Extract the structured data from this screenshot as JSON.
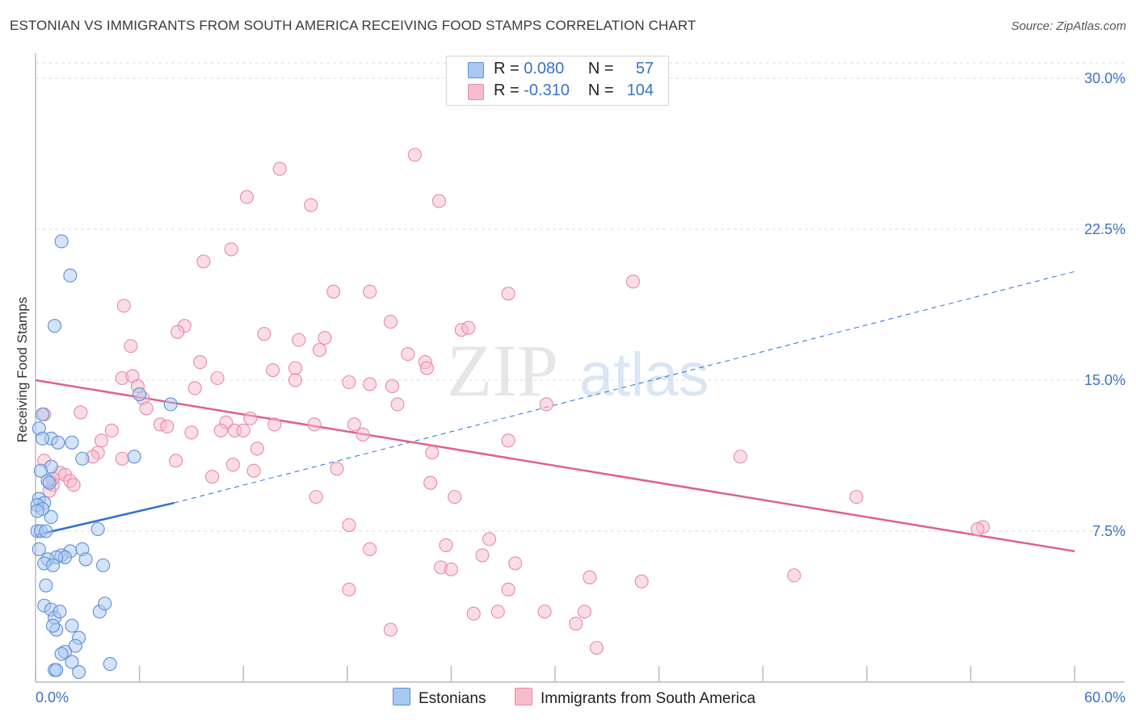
{
  "title": "ESTONIAN VS IMMIGRANTS FROM SOUTH AMERICA RECEIVING FOOD STAMPS CORRELATION CHART",
  "source": "Source: ZipAtlas.com",
  "watermark": {
    "zip": "ZIP",
    "atlas": "atlas"
  },
  "legend_top": [
    {
      "r_label": "R =",
      "r_value": "0.080",
      "n_label": "N =",
      "n_value": "57"
    },
    {
      "r_label": "R =",
      "r_value": "-0.310",
      "n_label": "N =",
      "n_value": "104"
    }
  ],
  "legend_bottom": [
    "Estonians",
    "Immigrants from South America"
  ],
  "colors": {
    "blue_fill": "#aac8ef",
    "blue_stroke": "#5d8fd6",
    "blue_line": "#3070d0",
    "pink_fill": "#f6bccd",
    "pink_stroke": "#e98aa6",
    "pink_line": "#e0608c",
    "tick_label": "#3a73c8",
    "grid": "#dddddd"
  },
  "chart_data": {
    "type": "scatter",
    "title": "ESTONIAN VS IMMIGRANTS FROM SOUTH AMERICA RECEIVING FOOD STAMPS CORRELATION CHART",
    "xlabel": "",
    "ylabel": "Receiving Food Stamps",
    "xlim": [
      0,
      60
    ],
    "ylim": [
      0,
      30
    ],
    "x_tick_labels": [
      "0.0%",
      "60.0%"
    ],
    "y_ticks": [
      7.5,
      15.0,
      22.5,
      30.0
    ],
    "y_tick_labels": [
      "7.5%",
      "15.0%",
      "22.5%",
      "30.0%"
    ],
    "grid": "horizontal dashed",
    "legend_position": "top-center",
    "series": [
      {
        "name": "Estonians",
        "r": 0.08,
        "n": 57,
        "trend": {
          "x0": 0,
          "y0": 7.3,
          "x1": 8,
          "y1": 8.9,
          "dashed_to_x": 60,
          "dashed_to_y": 20.4
        },
        "points": [
          [
            1.5,
            21.9
          ],
          [
            2.0,
            20.2
          ],
          [
            1.1,
            17.7
          ],
          [
            6.0,
            14.3
          ],
          [
            7.8,
            13.8
          ],
          [
            0.4,
            13.3
          ],
          [
            0.2,
            12.6
          ],
          [
            0.9,
            12.1
          ],
          [
            0.4,
            12.1
          ],
          [
            2.1,
            11.9
          ],
          [
            1.3,
            11.9
          ],
          [
            5.7,
            11.2
          ],
          [
            2.7,
            11.1
          ],
          [
            0.9,
            10.7
          ],
          [
            0.3,
            10.5
          ],
          [
            0.7,
            10.0
          ],
          [
            0.8,
            9.9
          ],
          [
            0.2,
            9.1
          ],
          [
            0.5,
            8.9
          ],
          [
            0.1,
            8.8
          ],
          [
            0.4,
            8.6
          ],
          [
            0.1,
            8.5
          ],
          [
            0.9,
            8.2
          ],
          [
            3.6,
            7.6
          ],
          [
            0.1,
            7.5
          ],
          [
            0.3,
            7.5
          ],
          [
            0.6,
            7.5
          ],
          [
            2.7,
            6.6
          ],
          [
            2.0,
            6.5
          ],
          [
            1.5,
            6.3
          ],
          [
            1.7,
            6.2
          ],
          [
            0.2,
            6.6
          ],
          [
            1.2,
            6.2
          ],
          [
            0.7,
            6.1
          ],
          [
            2.9,
            6.1
          ],
          [
            0.5,
            5.9
          ],
          [
            1.0,
            5.8
          ],
          [
            3.9,
            5.8
          ],
          [
            0.6,
            4.8
          ],
          [
            0.5,
            3.8
          ],
          [
            0.9,
            3.6
          ],
          [
            3.7,
            3.5
          ],
          [
            4.0,
            3.9
          ],
          [
            1.1,
            3.2
          ],
          [
            1.4,
            3.5
          ],
          [
            2.1,
            2.8
          ],
          [
            1.2,
            2.6
          ],
          [
            2.5,
            2.2
          ],
          [
            1.0,
            2.8
          ],
          [
            2.3,
            1.8
          ],
          [
            1.7,
            1.5
          ],
          [
            1.5,
            1.4
          ],
          [
            2.1,
            1.0
          ],
          [
            4.3,
            0.9
          ],
          [
            1.1,
            0.6
          ],
          [
            2.5,
            0.5
          ],
          [
            1.2,
            0.6
          ]
        ]
      },
      {
        "name": "Immigrants from South America",
        "r": -0.31,
        "n": 104,
        "trend": {
          "x0": 0,
          "y0": 15.0,
          "x1": 60,
          "y1": 6.5
        },
        "points": [
          [
            21.9,
            26.2
          ],
          [
            14.1,
            25.5
          ],
          [
            12.2,
            24.1
          ],
          [
            15.9,
            23.7
          ],
          [
            23.3,
            23.9
          ],
          [
            11.3,
            21.5
          ],
          [
            9.7,
            20.9
          ],
          [
            34.5,
            19.9
          ],
          [
            17.2,
            19.4
          ],
          [
            19.3,
            19.4
          ],
          [
            27.3,
            19.3
          ],
          [
            5.1,
            18.7
          ],
          [
            20.5,
            17.9
          ],
          [
            8.6,
            17.7
          ],
          [
            8.2,
            17.4
          ],
          [
            13.2,
            17.3
          ],
          [
            24.6,
            17.5
          ],
          [
            25.0,
            17.6
          ],
          [
            15.2,
            17.0
          ],
          [
            16.7,
            17.1
          ],
          [
            5.5,
            16.7
          ],
          [
            16.4,
            16.5
          ],
          [
            21.5,
            16.3
          ],
          [
            22.5,
            15.9
          ],
          [
            9.5,
            15.9
          ],
          [
            13.7,
            15.5
          ],
          [
            15.0,
            15.6
          ],
          [
            22.6,
            15.6
          ],
          [
            5.0,
            15.1
          ],
          [
            10.5,
            15.1
          ],
          [
            15.0,
            15.0
          ],
          [
            5.6,
            15.2
          ],
          [
            18.1,
            14.9
          ],
          [
            19.3,
            14.8
          ],
          [
            20.6,
            14.7
          ],
          [
            5.9,
            14.7
          ],
          [
            9.2,
            14.6
          ],
          [
            6.2,
            14.1
          ],
          [
            29.5,
            13.8
          ],
          [
            20.9,
            13.8
          ],
          [
            6.4,
            13.6
          ],
          [
            2.6,
            13.4
          ],
          [
            12.4,
            13.1
          ],
          [
            11.0,
            12.9
          ],
          [
            13.8,
            12.8
          ],
          [
            16.1,
            12.8
          ],
          [
            7.2,
            12.8
          ],
          [
            18.4,
            12.8
          ],
          [
            7.6,
            12.7
          ],
          [
            10.7,
            12.5
          ],
          [
            11.5,
            12.5
          ],
          [
            12.0,
            12.5
          ],
          [
            4.4,
            12.5
          ],
          [
            9.0,
            12.4
          ],
          [
            18.9,
            12.3
          ],
          [
            3.8,
            12.0
          ],
          [
            27.3,
            12.0
          ],
          [
            12.8,
            11.6
          ],
          [
            3.6,
            11.4
          ],
          [
            3.3,
            11.2
          ],
          [
            5.0,
            11.1
          ],
          [
            8.1,
            11.0
          ],
          [
            11.4,
            10.8
          ],
          [
            22.9,
            11.4
          ],
          [
            40.7,
            11.2
          ],
          [
            17.4,
            10.6
          ],
          [
            12.6,
            10.5
          ],
          [
            1.4,
            10.4
          ],
          [
            1.7,
            10.3
          ],
          [
            2.0,
            10.0
          ],
          [
            10.2,
            10.2
          ],
          [
            2.2,
            9.8
          ],
          [
            1.0,
            9.8
          ],
          [
            22.8,
            9.9
          ],
          [
            16.2,
            9.2
          ],
          [
            24.2,
            9.2
          ],
          [
            47.4,
            9.2
          ],
          [
            18.1,
            7.8
          ],
          [
            54.7,
            7.7
          ],
          [
            54.4,
            7.6
          ],
          [
            26.2,
            7.1
          ],
          [
            19.3,
            6.6
          ],
          [
            23.7,
            6.8
          ],
          [
            25.8,
            6.3
          ],
          [
            27.7,
            5.9
          ],
          [
            23.4,
            5.7
          ],
          [
            24.0,
            5.6
          ],
          [
            35.0,
            5.0
          ],
          [
            32.0,
            5.2
          ],
          [
            43.8,
            5.3
          ],
          [
            18.1,
            4.6
          ],
          [
            27.3,
            4.6
          ],
          [
            25.3,
            3.4
          ],
          [
            26.7,
            3.5
          ],
          [
            29.4,
            3.5
          ],
          [
            31.7,
            3.5
          ],
          [
            20.5,
            2.6
          ],
          [
            31.2,
            2.9
          ],
          [
            32.4,
            1.7
          ],
          [
            0.5,
            13.3
          ],
          [
            0.5,
            11.0
          ],
          [
            1.0,
            10.1
          ],
          [
            0.8,
            9.5
          ]
        ]
      }
    ]
  }
}
